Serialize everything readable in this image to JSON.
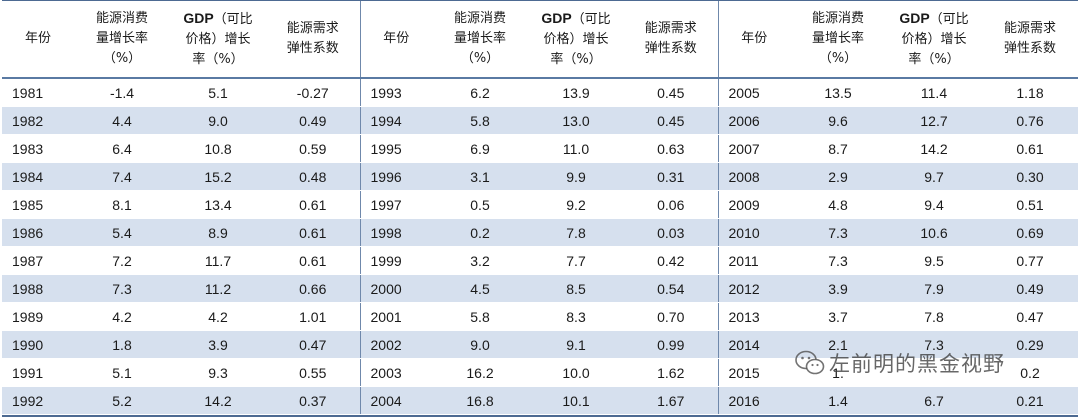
{
  "headers": {
    "year": "年份",
    "energy": [
      "能源消费",
      "量增长率",
      "（%）"
    ],
    "gdp_bold": "GDP",
    "gdp": [
      "（可比",
      "价格）增长",
      "率（%）"
    ],
    "elasticity": [
      "能源需求",
      "弹性系数"
    ]
  },
  "rows": [
    [
      [
        "1981",
        "-1.4",
        "5.1",
        "-0.27"
      ],
      [
        "1993",
        "6.2",
        "13.9",
        "0.45"
      ],
      [
        "2005",
        "13.5",
        "11.4",
        "1.18"
      ]
    ],
    [
      [
        "1982",
        "4.4",
        "9.0",
        "0.49"
      ],
      [
        "1994",
        "5.8",
        "13.0",
        "0.45"
      ],
      [
        "2006",
        "9.6",
        "12.7",
        "0.76"
      ]
    ],
    [
      [
        "1983",
        "6.4",
        "10.8",
        "0.59"
      ],
      [
        "1995",
        "6.9",
        "11.0",
        "0.63"
      ],
      [
        "2007",
        "8.7",
        "14.2",
        "0.61"
      ]
    ],
    [
      [
        "1984",
        "7.4",
        "15.2",
        "0.48"
      ],
      [
        "1996",
        "3.1",
        "9.9",
        "0.31"
      ],
      [
        "2008",
        "2.9",
        "9.7",
        "0.30"
      ]
    ],
    [
      [
        "1985",
        "8.1",
        "13.4",
        "0.61"
      ],
      [
        "1997",
        "0.5",
        "9.2",
        "0.06"
      ],
      [
        "2009",
        "4.8",
        "9.4",
        "0.51"
      ]
    ],
    [
      [
        "1986",
        "5.4",
        "8.9",
        "0.61"
      ],
      [
        "1998",
        "0.2",
        "7.8",
        "0.03"
      ],
      [
        "2010",
        "7.3",
        "10.6",
        "0.69"
      ]
    ],
    [
      [
        "1987",
        "7.2",
        "11.7",
        "0.61"
      ],
      [
        "1999",
        "3.2",
        "7.7",
        "0.42"
      ],
      [
        "2011",
        "7.3",
        "9.5",
        "0.77"
      ]
    ],
    [
      [
        "1988",
        "7.3",
        "11.2",
        "0.66"
      ],
      [
        "2000",
        "4.5",
        "8.5",
        "0.54"
      ],
      [
        "2012",
        "3.9",
        "7.9",
        "0.49"
      ]
    ],
    [
      [
        "1989",
        "4.2",
        "4.2",
        "1.01"
      ],
      [
        "2001",
        "5.8",
        "8.3",
        "0.70"
      ],
      [
        "2013",
        "3.7",
        "7.8",
        "0.47"
      ]
    ],
    [
      [
        "1990",
        "1.8",
        "3.9",
        "0.47"
      ],
      [
        "2002",
        "9.0",
        "9.1",
        "0.99"
      ],
      [
        "2014",
        "2.1",
        "7.3",
        "0.29"
      ]
    ],
    [
      [
        "1991",
        "5.1",
        "9.3",
        "0.55"
      ],
      [
        "2003",
        "16.2",
        "10.0",
        "1.62"
      ],
      [
        "2015",
        "1.",
        "",
        "0.2"
      ]
    ],
    [
      [
        "1992",
        "5.2",
        "14.2",
        "0.37"
      ],
      [
        "2004",
        "16.8",
        "10.1",
        "1.67"
      ],
      [
        "2016",
        "1.4",
        "6.7",
        "0.21"
      ]
    ]
  ],
  "watermark": {
    "text": "左前明的黑金视野",
    "icon": "wechat-icon"
  }
}
